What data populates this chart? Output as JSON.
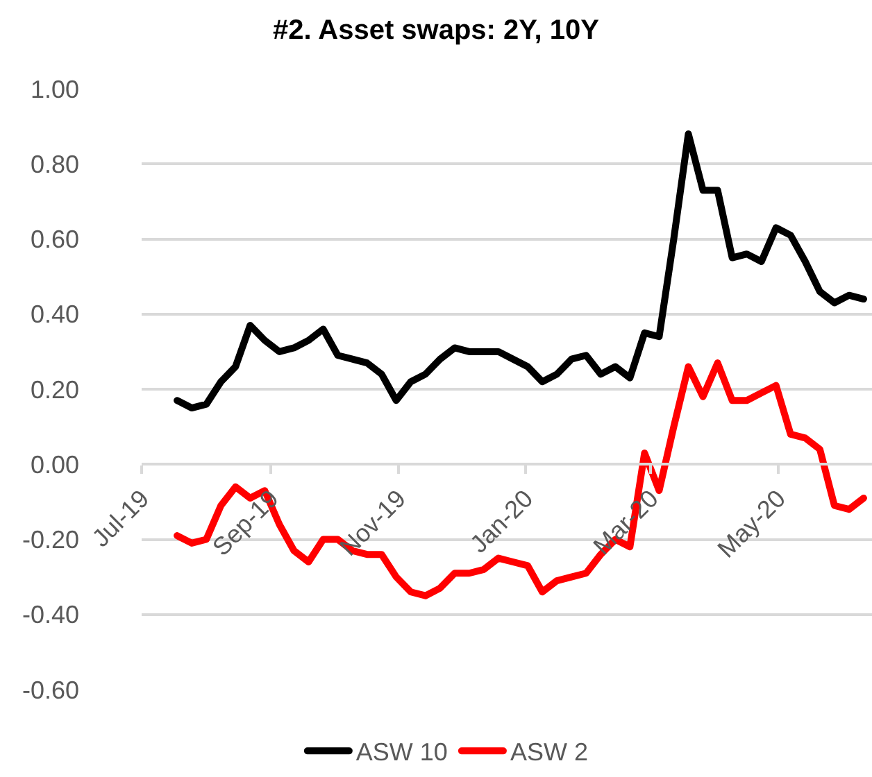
{
  "chart_data": {
    "type": "line",
    "title": "#2. Asset swaps: 2Y, 10Y",
    "x": [
      "2019-07-18",
      "2019-07-25",
      "2019-08-01",
      "2019-08-08",
      "2019-08-15",
      "2019-08-22",
      "2019-08-29",
      "2019-09-05",
      "2019-09-12",
      "2019-09-19",
      "2019-09-26",
      "2019-10-03",
      "2019-10-10",
      "2019-10-17",
      "2019-10-24",
      "2019-10-31",
      "2019-11-07",
      "2019-11-14",
      "2019-11-21",
      "2019-11-28",
      "2019-12-05",
      "2019-12-12",
      "2019-12-19",
      "2019-12-26",
      "2020-01-02",
      "2020-01-09",
      "2020-01-16",
      "2020-01-23",
      "2020-01-30",
      "2020-02-06",
      "2020-02-13",
      "2020-02-20",
      "2020-02-27",
      "2020-03-05",
      "2020-03-12",
      "2020-03-19",
      "2020-03-26",
      "2020-04-02",
      "2020-04-09",
      "2020-04-16",
      "2020-04-23",
      "2020-04-30",
      "2020-05-07",
      "2020-05-14",
      "2020-05-21",
      "2020-05-28",
      "2020-06-04",
      "2020-06-11"
    ],
    "series": [
      {
        "name": "ASW 10",
        "color": "#000000",
        "values": [
          0.17,
          0.15,
          0.16,
          0.22,
          0.26,
          0.37,
          0.33,
          0.3,
          0.31,
          0.33,
          0.36,
          0.29,
          0.28,
          0.27,
          0.24,
          0.17,
          0.22,
          0.24,
          0.28,
          0.31,
          0.3,
          0.3,
          0.3,
          0.28,
          0.26,
          0.22,
          0.24,
          0.28,
          0.29,
          0.24,
          0.26,
          0.23,
          0.35,
          0.34,
          0.6,
          0.88,
          0.73,
          0.73,
          0.55,
          0.56,
          0.54,
          0.63,
          0.61,
          0.54,
          0.46,
          0.43,
          0.45,
          0.44
        ]
      },
      {
        "name": "ASW 2",
        "color": "#ff0000",
        "values": [
          -0.19,
          -0.21,
          -0.2,
          -0.11,
          -0.06,
          -0.09,
          -0.07,
          -0.16,
          -0.23,
          -0.26,
          -0.2,
          -0.2,
          -0.23,
          -0.24,
          -0.24,
          -0.3,
          -0.34,
          -0.35,
          -0.33,
          -0.29,
          -0.29,
          -0.28,
          -0.25,
          -0.26,
          -0.27,
          -0.34,
          -0.31,
          -0.3,
          -0.29,
          -0.24,
          -0.2,
          -0.22,
          0.03,
          -0.07,
          0.1,
          0.26,
          0.18,
          0.27,
          0.17,
          0.17,
          0.19,
          0.21,
          0.08,
          0.07,
          0.04,
          -0.11,
          -0.12,
          -0.09
        ]
      }
    ],
    "xlim": [
      "2019-07-01",
      "2020-06-15"
    ],
    "xticks": [
      {
        "value": "2019-07-01",
        "label": "Jul-19"
      },
      {
        "value": "2019-09-01",
        "label": "Sep-19"
      },
      {
        "value": "2019-11-01",
        "label": "Nov-19"
      },
      {
        "value": "2020-01-01",
        "label": "Jan-20"
      },
      {
        "value": "2020-03-01",
        "label": "Mar-20"
      },
      {
        "value": "2020-05-01",
        "label": "May-20"
      }
    ],
    "ylim": [
      -0.6,
      1.0
    ],
    "yticks": [
      {
        "value": -0.6,
        "label": "-0.60"
      },
      {
        "value": -0.4,
        "label": "-0.40"
      },
      {
        "value": -0.2,
        "label": "-0.20"
      },
      {
        "value": 0,
        "label": "0.00"
      },
      {
        "value": 0.2,
        "label": "0.20"
      },
      {
        "value": 0.4,
        "label": "0.40"
      },
      {
        "value": 0.6,
        "label": "0.60"
      },
      {
        "value": 0.8,
        "label": "0.80"
      },
      {
        "value": 1.0,
        "label": "1.00"
      }
    ],
    "grid": "y",
    "legend": "bottom",
    "marker": "none",
    "line_style": "solid"
  }
}
